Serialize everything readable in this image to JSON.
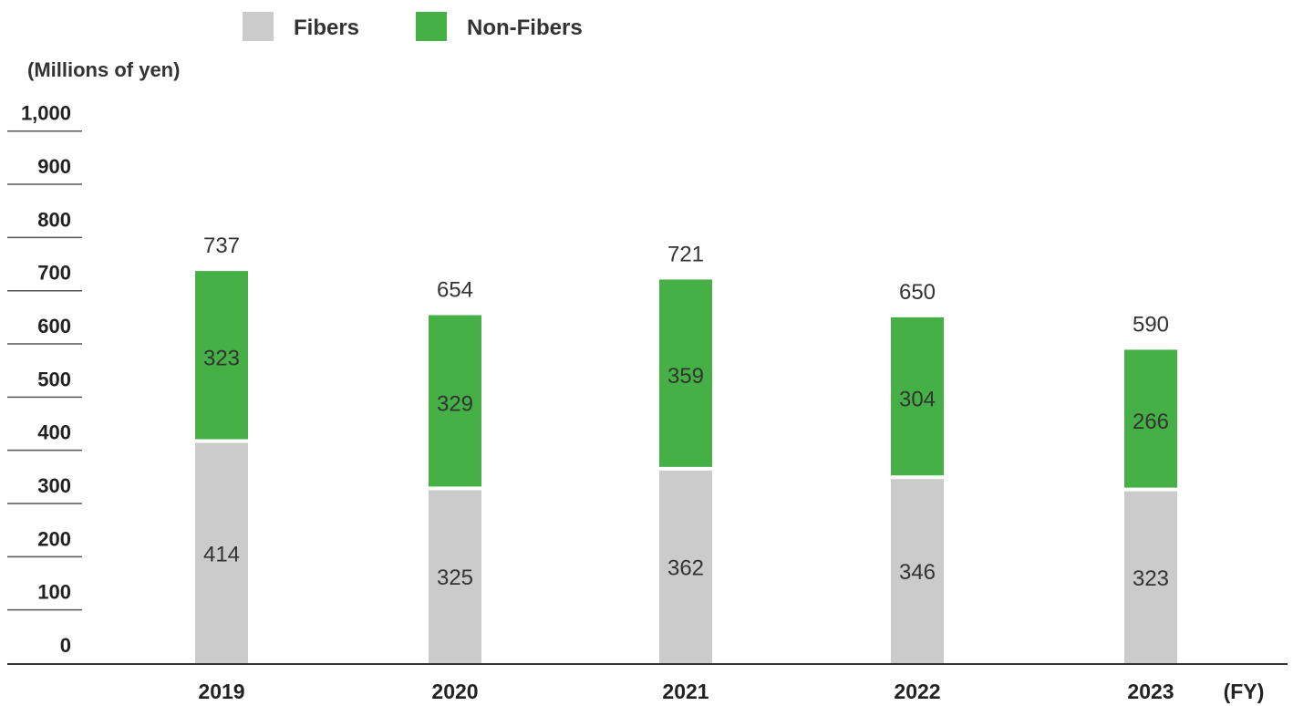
{
  "chart_data": {
    "type": "bar",
    "stacked": true,
    "categories": [
      "2019",
      "2020",
      "2021",
      "2022",
      "2023"
    ],
    "series": [
      {
        "name": "Fibers",
        "values": [
          414,
          325,
          362,
          346,
          323
        ],
        "color": "#cbcbcb"
      },
      {
        "name": "Non-Fibers",
        "values": [
          323,
          329,
          359,
          304,
          266
        ],
        "color": "#45b045"
      }
    ],
    "totals": [
      737,
      654,
      721,
      650,
      590
    ],
    "ylabel": "(Millions of yen)",
    "xunit": "(FY)",
    "ylim": [
      0,
      1000
    ],
    "yticks": [
      "0",
      "100",
      "200",
      "300",
      "400",
      "500",
      "600",
      "700",
      "800",
      "900",
      "1,000"
    ],
    "legend_position": "top-left",
    "grid": false
  }
}
